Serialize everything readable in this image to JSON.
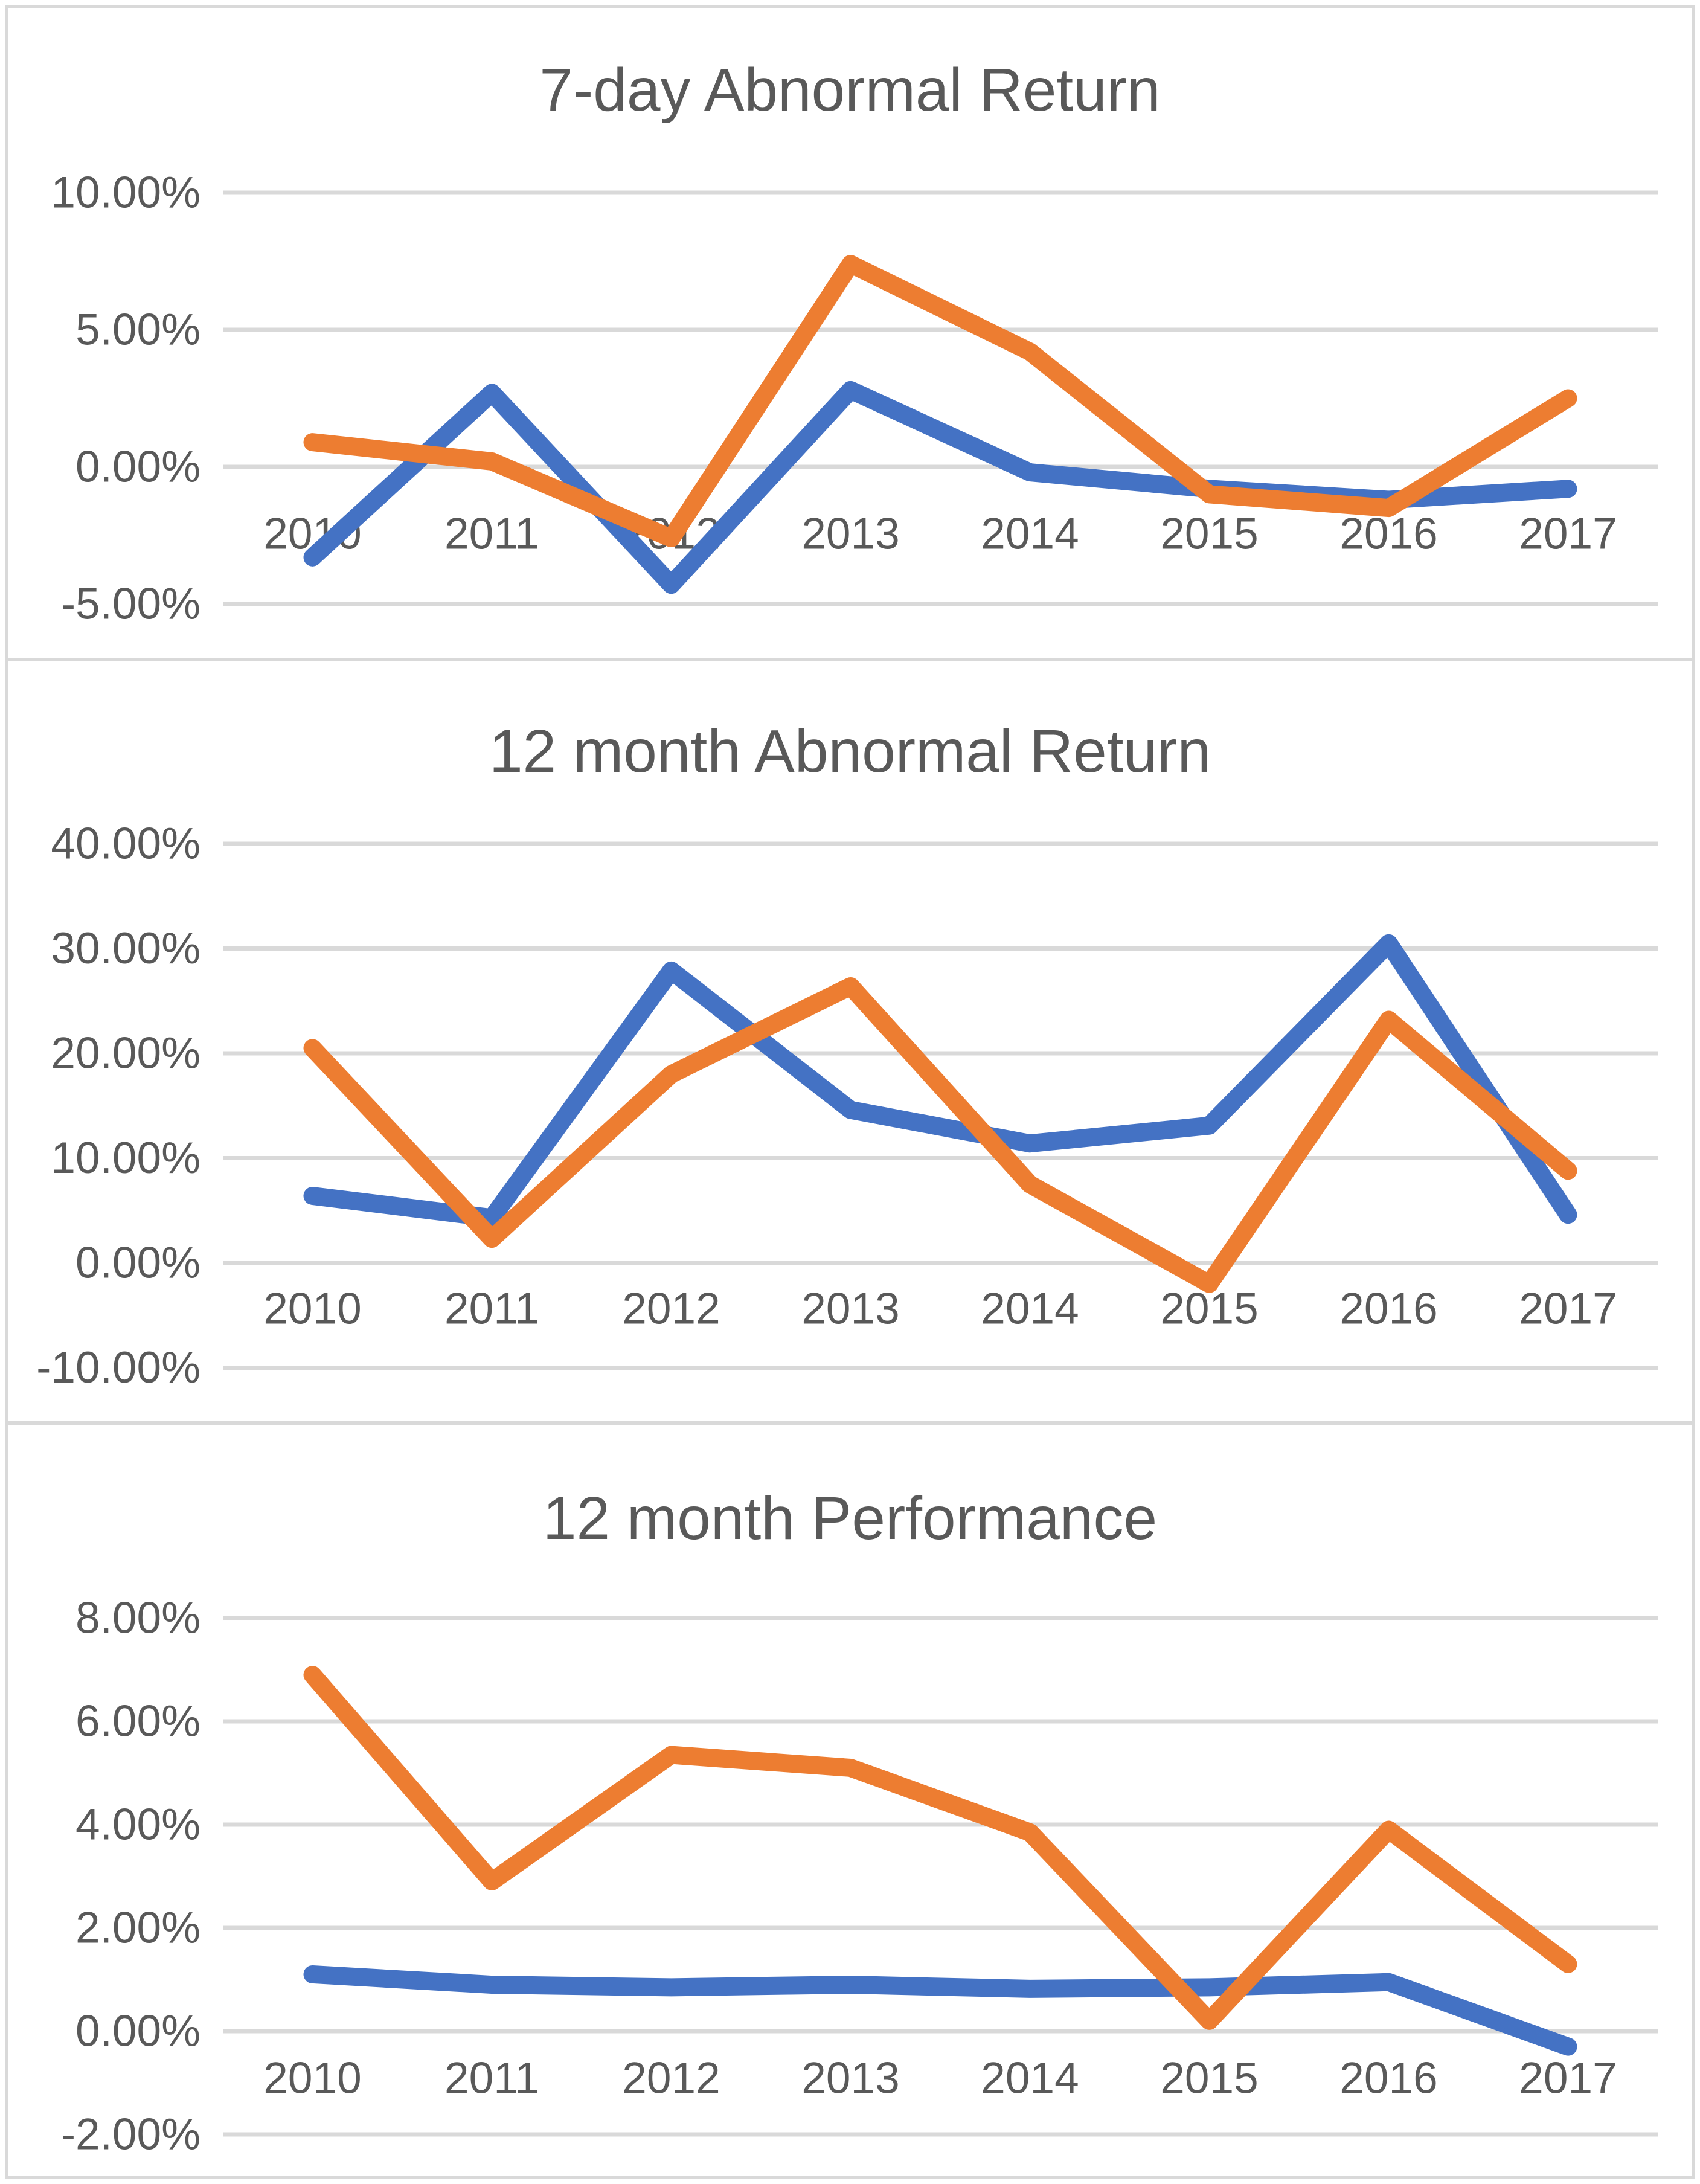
{
  "page": {
    "background": "#ffffff",
    "border_color": "#d9d9d9",
    "text_color": "#595959",
    "gridline_color": "#d9d9d9"
  },
  "chart_data": [
    {
      "type": "line",
      "title": "7-day Abnormal Return",
      "categories": [
        "2010",
        "2011",
        "2012",
        "2013",
        "2014",
        "2015",
        "2016",
        "2017"
      ],
      "ytick_labels": [
        "10.00%",
        "5.00%",
        "0.00%",
        "-5.00%"
      ],
      "yticks": [
        10,
        5,
        0,
        -5
      ],
      "ylim": [
        -5,
        10
      ],
      "grid": true,
      "legend": "none",
      "series": [
        {
          "name": "series-blue",
          "color": "#4472C4",
          "values": [
            -3.3,
            2.7,
            -4.3,
            2.8,
            -0.2,
            -0.8,
            -1.2,
            -0.8
          ]
        },
        {
          "name": "series-orange",
          "color": "#ED7D31",
          "values": [
            0.9,
            0.2,
            -2.6,
            7.4,
            4.2,
            -1.0,
            -1.5,
            2.5
          ]
        }
      ]
    },
    {
      "type": "line",
      "title": "12 month Abnormal Return",
      "categories": [
        "2010",
        "2011",
        "2012",
        "2013",
        "2014",
        "2015",
        "2016",
        "2017"
      ],
      "ytick_labels": [
        "40.00%",
        "30.00%",
        "20.00%",
        "10.00%",
        "0.00%",
        "-10.00%"
      ],
      "yticks": [
        40,
        30,
        20,
        10,
        0,
        -10
      ],
      "ylim": [
        -10,
        40
      ],
      "grid": true,
      "legend": "none",
      "series": [
        {
          "name": "series-blue",
          "color": "#4472C4",
          "values": [
            6.4,
            4.3,
            27.9,
            14.6,
            11.4,
            13.1,
            30.5,
            4.6
          ]
        },
        {
          "name": "series-orange",
          "color": "#ED7D31",
          "values": [
            20.5,
            2.3,
            18.0,
            26.4,
            7.5,
            -2.0,
            23.2,
            8.8
          ]
        }
      ]
    },
    {
      "type": "line",
      "title": "12 month Performance",
      "categories": [
        "2010",
        "2011",
        "2012",
        "2013",
        "2014",
        "2015",
        "2016",
        "2017"
      ],
      "ytick_labels": [
        "8.00%",
        "6.00%",
        "4.00%",
        "2.00%",
        "0.00%",
        "-2.00%"
      ],
      "yticks": [
        8,
        6,
        4,
        2,
        0,
        -2
      ],
      "ylim": [
        -2,
        8
      ],
      "grid": true,
      "legend": "none",
      "series": [
        {
          "name": "series-blue",
          "color": "#4472C4",
          "values": [
            1.1,
            0.9,
            0.85,
            0.9,
            0.82,
            0.85,
            0.95,
            -0.3
          ]
        },
        {
          "name": "series-orange",
          "color": "#ED7D31",
          "values": [
            6.9,
            2.9,
            5.35,
            5.1,
            3.85,
            0.2,
            3.9,
            1.3
          ]
        }
      ]
    }
  ]
}
